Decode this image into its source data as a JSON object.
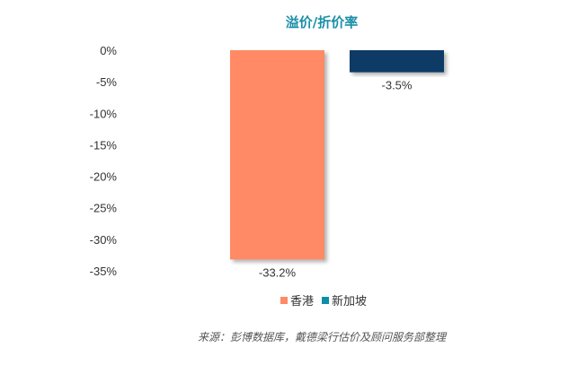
{
  "chart_data": {
    "type": "bar",
    "title": "溢价/折价率",
    "categories": [
      "香港",
      "新加坡"
    ],
    "values": [
      -33.2,
      -3.5
    ],
    "value_labels": [
      "-33.2%",
      "-3.5%"
    ],
    "ylim": [
      -35,
      0
    ],
    "yticks": [
      {
        "value": 0,
        "label": "0%"
      },
      {
        "value": -5,
        "label": "-5%"
      },
      {
        "value": -10,
        "label": "-10%"
      },
      {
        "value": -15,
        "label": "-15%"
      },
      {
        "value": -20,
        "label": "-20%"
      },
      {
        "value": -25,
        "label": "-25%"
      },
      {
        "value": -30,
        "label": "-30%"
      },
      {
        "value": -35,
        "label": "-35%"
      }
    ],
    "grid": false,
    "legend_placement": "bottom-center",
    "legend": [
      {
        "name": "香港",
        "color": "#FF8A65"
      },
      {
        "name": "新加坡",
        "color": "#0B8FA8"
      }
    ],
    "bar_colors": [
      "#FF8A65",
      "#0C3A66"
    ],
    "title_color": "#1A8FA8"
  },
  "source_note": "来源：彭博数据库，戴德梁行估价及顾问服务部整理"
}
